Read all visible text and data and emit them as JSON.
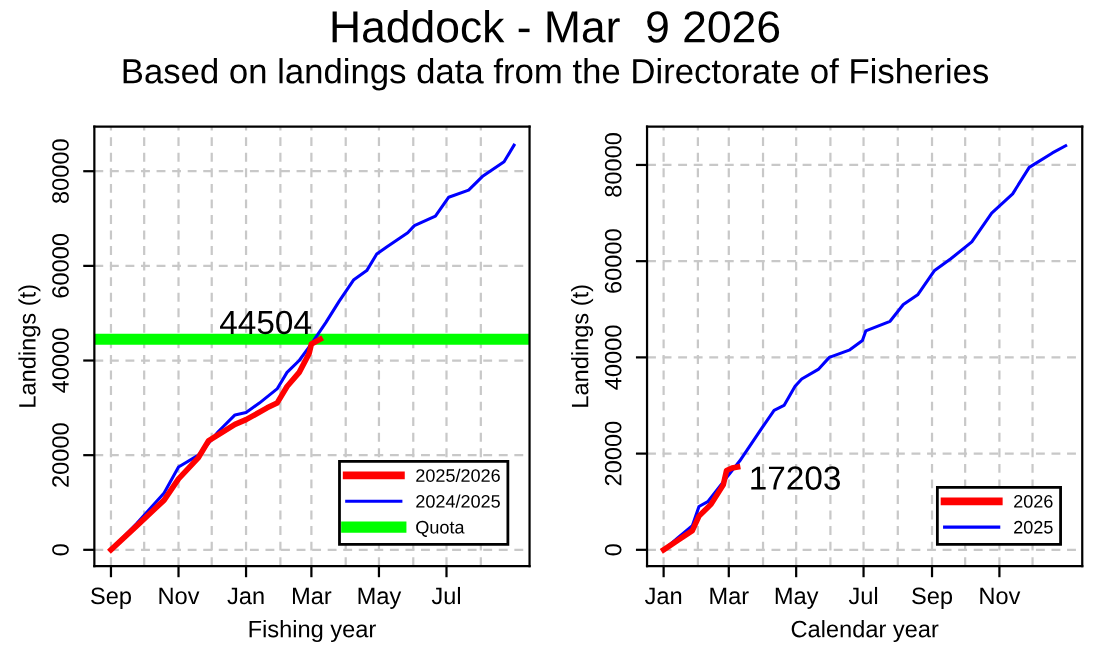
{
  "chart_data": [
    {
      "type": "line",
      "title": "Haddock - Mar  9 2026",
      "subtitle": "Based on landings data from the Directorate of Fisheries",
      "xlabel": "Fishing year",
      "ylabel": "Landings (t)",
      "series": [
        {
          "name": "2025/2026",
          "color": "#ff0000",
          "x": [
            "2025-09-01",
            "2025-09-24",
            "2025-10-19",
            "2025-11-01",
            "2025-11-19",
            "2025-11-28",
            "2025-12-22",
            "2026-01-01",
            "2026-01-20",
            "2026-01-29",
            "2026-02-07",
            "2026-02-18",
            "2026-02-27",
            "2026-03-01",
            "2026-03-09"
          ],
          "values": [
            0,
            5000,
            10500,
            15000,
            19500,
            23000,
            26500,
            27500,
            30000,
            31000,
            34500,
            37500,
            41500,
            43500,
            44504
          ]
        },
        {
          "name": "2024/2025",
          "color": "#0000ff",
          "x": [
            "2025-09-01",
            "2025-09-24",
            "2025-10-19",
            "2025-11-01",
            "2025-11-19",
            "2025-12-07",
            "2025-12-22",
            "2026-01-01",
            "2026-01-13",
            "2026-01-29",
            "2026-02-07",
            "2026-02-18",
            "2026-03-01",
            "2026-03-14",
            "2026-03-26",
            "2026-04-08",
            "2026-04-20",
            "2026-04-29",
            "2026-05-08",
            "2026-05-27",
            "2026-06-02",
            "2026-06-21",
            "2026-07-03",
            "2026-07-21",
            "2026-08-03",
            "2026-08-22",
            "2026-08-31"
          ],
          "values": [
            0,
            5500,
            12000,
            17500,
            20000,
            25000,
            28500,
            29000,
            31000,
            34000,
            37500,
            40000,
            43500,
            48000,
            52500,
            57000,
            59000,
            62500,
            64000,
            67000,
            68500,
            70500,
            74500,
            76000,
            79000,
            82000,
            85500
          ]
        }
      ],
      "ref_lines": [
        {
          "axis": "y",
          "value": 44500,
          "label": "Quota",
          "color": "#00ff00"
        }
      ],
      "annotations": [
        {
          "text": "44504",
          "x": "2026-03-09",
          "y": 44504
        }
      ],
      "xlim": [
        "2025-08-17",
        "2026-09-14"
      ],
      "ylim": [
        -3440,
        89440
      ],
      "xticks": [
        {
          "value": "2025-09-01",
          "label": "Sep"
        },
        {
          "value": "2025-10-01",
          "label": null
        },
        {
          "value": "2025-11-01",
          "label": "Nov"
        },
        {
          "value": "2025-12-01",
          "label": null
        },
        {
          "value": "2026-01-01",
          "label": "Jan"
        },
        {
          "value": "2026-02-01",
          "label": null
        },
        {
          "value": "2026-03-01",
          "label": "Mar"
        },
        {
          "value": "2026-04-01",
          "label": null
        },
        {
          "value": "2026-05-01",
          "label": "May"
        },
        {
          "value": "2026-06-01",
          "label": null
        },
        {
          "value": "2026-07-01",
          "label": "Jul"
        },
        {
          "value": "2026-08-01",
          "label": null
        }
      ],
      "yticks": [
        0,
        20000,
        40000,
        60000,
        80000
      ],
      "grid": true,
      "legend": "bottom right",
      "line_style": "solid"
    },
    {
      "type": "line",
      "xlabel": "Calendar year",
      "ylabel": "Landings (t)",
      "series": [
        {
          "name": "2026",
          "color": "#ff0000",
          "x": [
            "2026-01-01",
            "2026-01-14",
            "2026-01-27",
            "2026-02-02",
            "2026-02-13",
            "2026-02-24",
            "2026-02-27",
            "2026-03-04",
            "2026-03-09"
          ],
          "values": [
            0,
            2000,
            4000,
            7000,
            9500,
            13500,
            16500,
            17000,
            17203
          ]
        },
        {
          "name": "2025",
          "color": "#0000ff",
          "x": [
            "2026-01-01",
            "2026-01-14",
            "2026-01-27",
            "2026-02-02",
            "2026-02-10",
            "2026-02-27",
            "2026-03-11",
            "2026-03-30",
            "2026-04-11",
            "2026-04-20",
            "2026-04-30",
            "2026-05-06",
            "2026-05-21",
            "2026-05-31",
            "2026-06-18",
            "2026-06-30",
            "2026-07-03",
            "2026-07-25",
            "2026-08-06",
            "2026-08-19",
            "2026-09-03",
            "2026-09-18",
            "2026-10-07",
            "2026-10-25",
            "2026-11-13",
            "2026-11-28",
            "2026-12-19",
            "2026-12-31"
          ],
          "values": [
            0,
            2500,
            5000,
            9000,
            10000,
            15000,
            18500,
            25000,
            29000,
            30000,
            34000,
            35500,
            37500,
            40000,
            41500,
            43500,
            45500,
            47500,
            51000,
            53000,
            58000,
            60500,
            64000,
            70000,
            74000,
            79500,
            82500,
            84000
          ]
        }
      ],
      "annotations": [
        {
          "text": "17203",
          "x": "2026-03-09",
          "y": 17203
        }
      ],
      "xlim": [
        "2025-12-17",
        "2027-01-15"
      ],
      "ylim": [
        -3384,
        87984
      ],
      "xticks": [
        {
          "value": "2026-01-01",
          "label": "Jan"
        },
        {
          "value": "2026-02-01",
          "label": null
        },
        {
          "value": "2026-03-01",
          "label": "Mar"
        },
        {
          "value": "2026-04-01",
          "label": null
        },
        {
          "value": "2026-05-01",
          "label": "May"
        },
        {
          "value": "2026-06-01",
          "label": null
        },
        {
          "value": "2026-07-01",
          "label": "Jul"
        },
        {
          "value": "2026-08-01",
          "label": null
        },
        {
          "value": "2026-09-01",
          "label": "Sep"
        },
        {
          "value": "2026-10-01",
          "label": null
        },
        {
          "value": "2026-11-01",
          "label": "Nov"
        },
        {
          "value": "2026-12-01",
          "label": null
        }
      ],
      "yticks": [
        0,
        20000,
        40000,
        60000,
        80000
      ],
      "grid": true,
      "legend": "bottom right",
      "line_style": "solid"
    }
  ]
}
